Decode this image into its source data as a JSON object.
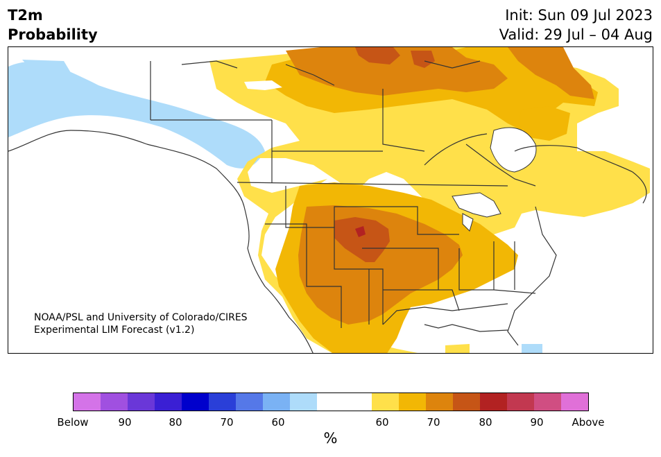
{
  "title": {
    "line1": "T2m",
    "line2": "Probability"
  },
  "init_text": "Init: Sun 09 Jul 2023",
  "valid_text": "Valid: 29 Jul – 04 Aug",
  "credit": {
    "line1": "NOAA/PSL and University of Colorado/CIRES",
    "line2": "Experimental LIM Forecast (v1.2)"
  },
  "colorbar": {
    "unit": "%",
    "colors": [
      "#d473e8",
      "#a050e0",
      "#6a37d8",
      "#3a1fd4",
      "#0000cc",
      "#2a3fd8",
      "#5578e8",
      "#7ab2f4",
      "#aedcfa",
      "#ffffff",
      "#ffffff",
      "#ffe04a",
      "#f2b705",
      "#dd840d",
      "#c65516",
      "#b22222",
      "#c23850",
      "#d04e82",
      "#e070d8"
    ],
    "tick_labels": [
      "Below",
      "90",
      "80",
      "70",
      "60",
      "60",
      "70",
      "80",
      "90",
      "Above"
    ]
  },
  "legend_colors": {
    "below_light": "#aedcfa",
    "above_60": "#ffe04a",
    "above_65": "#f2b705",
    "above_70": "#dd840d",
    "above_75": "#c65516",
    "above_80": "#b22222"
  }
}
